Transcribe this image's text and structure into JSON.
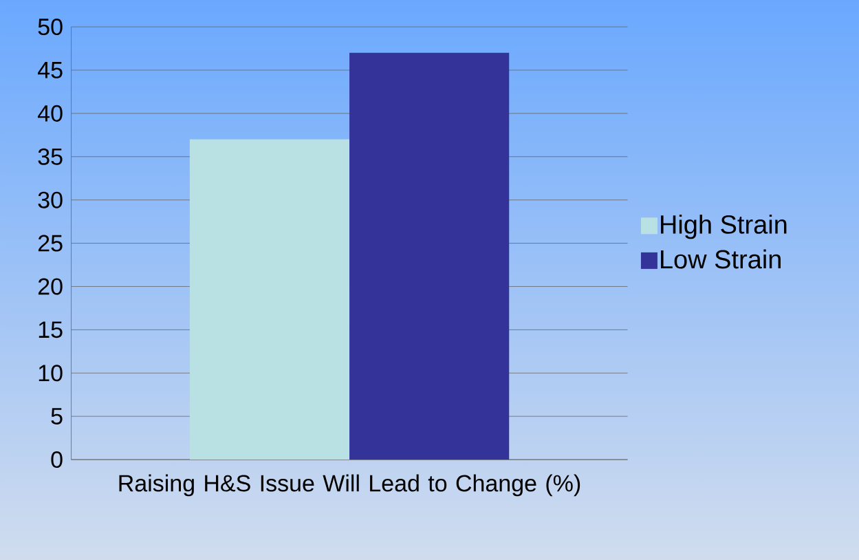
{
  "chart_data": {
    "type": "bar",
    "categories": [
      "Raising H&S Issue Will Lead to Change (%)"
    ],
    "series": [
      {
        "name": "High Strain",
        "color": "#b9e0e2",
        "values": [
          37
        ]
      },
      {
        "name": "Low Strain",
        "color": "#333399",
        "values": [
          47
        ]
      }
    ],
    "ylim": [
      0,
      50
    ],
    "yticks": [
      0,
      5,
      10,
      15,
      20,
      25,
      30,
      35,
      40,
      45,
      50
    ],
    "grid": "y",
    "legend": "right"
  }
}
